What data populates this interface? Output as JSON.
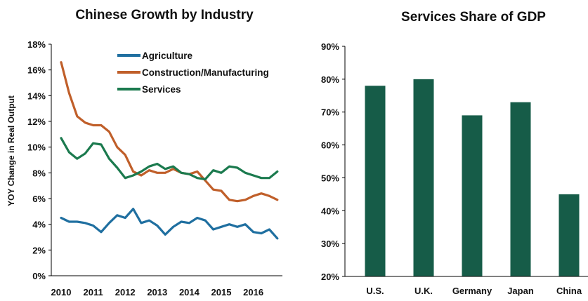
{
  "chart_data": [
    {
      "type": "line",
      "title": "Chinese Growth by Industry",
      "xlabel": "",
      "ylabel": "YOY Change in Real Output",
      "ylim": [
        0,
        18
      ],
      "y_ticks": [
        "0%",
        "2%",
        "4%",
        "6%",
        "8%",
        "10%",
        "12%",
        "14%",
        "16%",
        "18%"
      ],
      "x_tick_labels": [
        "2010",
        "2011",
        "2012",
        "2013",
        "2014",
        "2015",
        "2016"
      ],
      "x": [
        "2010 Q1",
        "2010 Q2",
        "2010 Q3",
        "2010 Q4",
        "2011 Q1",
        "2011 Q2",
        "2011 Q3",
        "2011 Q4",
        "2012 Q1",
        "2012 Q2",
        "2012 Q3",
        "2012 Q4",
        "2013 Q1",
        "2013 Q2",
        "2013 Q3",
        "2013 Q4",
        "2014 Q1",
        "2014 Q2",
        "2014 Q3",
        "2014 Q4",
        "2015 Q1",
        "2015 Q2",
        "2015 Q3",
        "2015 Q4",
        "2016 Q1",
        "2016 Q2",
        "2016 Q3",
        "2016 Q4"
      ],
      "legend_position": "top-right",
      "grid": false,
      "series": [
        {
          "name": "Agriculture",
          "color": "#1f6fa0",
          "values": [
            4.5,
            4.2,
            4.2,
            4.1,
            3.9,
            3.4,
            4.1,
            4.7,
            4.5,
            5.2,
            4.1,
            4.3,
            3.9,
            3.2,
            3.8,
            4.2,
            4.1,
            4.5,
            4.3,
            3.6,
            3.8,
            4.0,
            3.8,
            4.0,
            3.4,
            3.3,
            3.6,
            2.9
          ]
        },
        {
          "name": "Construction/Manufacturing",
          "color": "#c05f2a",
          "values": [
            16.6,
            14.2,
            12.4,
            11.9,
            11.7,
            11.7,
            11.2,
            10.0,
            9.4,
            8.1,
            7.8,
            8.2,
            8.0,
            8.0,
            8.3,
            8.0,
            7.9,
            8.1,
            7.4,
            6.7,
            6.6,
            5.9,
            5.8,
            5.9,
            6.2,
            6.4,
            6.2,
            5.9
          ]
        },
        {
          "name": "Services",
          "color": "#1b7a4e",
          "values": [
            10.7,
            9.6,
            9.1,
            9.5,
            10.3,
            10.2,
            9.1,
            8.4,
            7.6,
            7.8,
            8.1,
            8.5,
            8.7,
            8.3,
            8.5,
            8.0,
            7.9,
            7.6,
            7.5,
            8.2,
            8.0,
            8.5,
            8.4,
            8.0,
            7.8,
            7.6,
            7.6,
            8.1
          ]
        }
      ]
    },
    {
      "type": "bar",
      "title": "Services Share of GDP",
      "xlabel": "",
      "ylabel": "",
      "ylim": [
        20,
        90
      ],
      "y_ticks": [
        "20%",
        "30%",
        "40%",
        "50%",
        "60%",
        "70%",
        "80%",
        "90%"
      ],
      "categories": [
        "U.S.",
        "U.K.",
        "Germany",
        "Japan",
        "China"
      ],
      "values": [
        78,
        80,
        69,
        73,
        45
      ],
      "color": "#165c48",
      "grid": false
    }
  ]
}
